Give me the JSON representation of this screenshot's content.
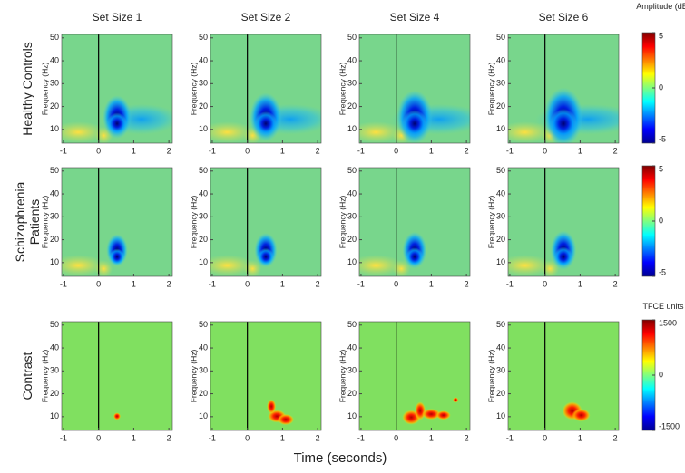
{
  "chart_data": {
    "type": "heatmap",
    "columns": [
      "Set Size 1",
      "Set Size 2",
      "Set Size 4",
      "Set Size 6"
    ],
    "rows": [
      {
        "label": "Healthy Controls",
        "colorbar_title": "Amplitude (dB)",
        "clim": [
          -5,
          5
        ],
        "cticks": [
          5,
          0,
          -5
        ]
      },
      {
        "label": "Schizophrenia Patients",
        "clim": [
          -5,
          5
        ],
        "cticks": [
          5,
          0,
          -5
        ]
      },
      {
        "label": "Contrast",
        "colorbar_title": "TFCE units",
        "clim": [
          -1500,
          1500
        ],
        "cticks": [
          1500,
          0,
          -1500
        ]
      }
    ],
    "xlabel": "Time (seconds)",
    "ylabel": "Frequency (Hz)",
    "xlim": [
      -1.05,
      2.1
    ],
    "xticks": [
      -1,
      0,
      1,
      2
    ],
    "ylim": [
      4,
      51.5
    ],
    "yticks": [
      10,
      20,
      30,
      40,
      50
    ]
  }
}
